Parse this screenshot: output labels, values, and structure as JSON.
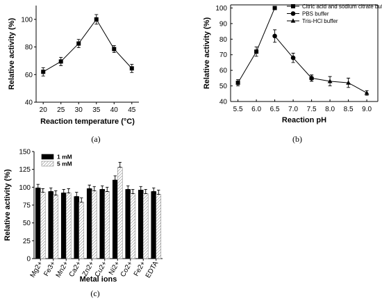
{
  "chart_data": [
    {
      "id": "a",
      "type": "line",
      "panel_label": "(a)",
      "xlabel": "Reaction temperature (°C)",
      "ylabel": "Relative activity (%)",
      "xlim": [
        18,
        47
      ],
      "ylim": [
        40,
        110
      ],
      "xticks": [
        20,
        25,
        30,
        35,
        40,
        45
      ],
      "yticks": [
        40,
        60,
        80,
        100
      ],
      "x": [
        20,
        25,
        30,
        35,
        40,
        45
      ],
      "series": [
        {
          "values": [
            62,
            69.5,
            82.5,
            100,
            78.5,
            64.5
          ],
          "errors": [
            3,
            3,
            3,
            3.5,
            2.5,
            3
          ],
          "marker": "square"
        }
      ]
    },
    {
      "id": "b",
      "type": "line",
      "panel_label": "(b)",
      "xlabel": "Reaction pH",
      "ylabel": "Relative activity (%)",
      "xlim": [
        5.3,
        9.3
      ],
      "ylim": [
        40,
        102
      ],
      "xticks": [
        5.5,
        6.0,
        6.5,
        7.0,
        7.5,
        8.0,
        8.5,
        9.0
      ],
      "xtick_labels": [
        "5.5",
        "6.0",
        "6.5",
        "7.0",
        "7.5",
        "8.0",
        "8.5",
        "9.0"
      ],
      "yticks": [
        40,
        50,
        60,
        70,
        80,
        90,
        100
      ],
      "legend_position": "top-right",
      "series": [
        {
          "name": "Citric acid and sodium citrate buffer",
          "marker": "square",
          "x": [
            5.5,
            6.0,
            6.5
          ],
          "values": [
            52,
            72,
            100
          ],
          "errors": [
            2,
            3,
            0.5
          ]
        },
        {
          "name": "PBS buffer",
          "marker": "circle",
          "x": [
            6.5,
            7.0,
            7.5
          ],
          "values": [
            82,
            68,
            55
          ],
          "errors": [
            4,
            3,
            2
          ]
        },
        {
          "name": "Tris-HCl buffer",
          "marker": "triangle",
          "x": [
            7.5,
            8.0,
            8.5,
            9.0
          ],
          "values": [
            55,
            53,
            52,
            45.5
          ],
          "errors": [
            2,
            3,
            3,
            1.5
          ]
        }
      ]
    },
    {
      "id": "c",
      "type": "bar",
      "panel_label": "(c)",
      "xlabel": "Metal ions",
      "ylabel": "Relative activity (%)",
      "ylim": [
        0,
        150
      ],
      "yticks": [
        0,
        25,
        50,
        75,
        100,
        125,
        150
      ],
      "categories": [
        "Mg2+",
        "Fe3+",
        "Mn2+",
        "Ca2+",
        "Zn2+",
        "Cu2+",
        "Ni2+",
        "Co2+",
        "Fe2+",
        "EDTA"
      ],
      "legend_position": "top-left",
      "series": [
        {
          "name": "1 mM",
          "fill": "solid",
          "values": [
            99,
            94,
            92,
            87,
            98,
            97,
            110,
            97,
            96,
            94
          ],
          "errors": [
            5,
            5,
            5,
            6,
            5,
            5,
            6,
            5,
            5,
            5
          ]
        },
        {
          "name": "5 mM",
          "fill": "hatched",
          "values": [
            93,
            89,
            92,
            79,
            95,
            94,
            128,
            91,
            91,
            90
          ],
          "errors": [
            5,
            6,
            6,
            6,
            6,
            6,
            7,
            6,
            6,
            6
          ]
        }
      ]
    }
  ]
}
